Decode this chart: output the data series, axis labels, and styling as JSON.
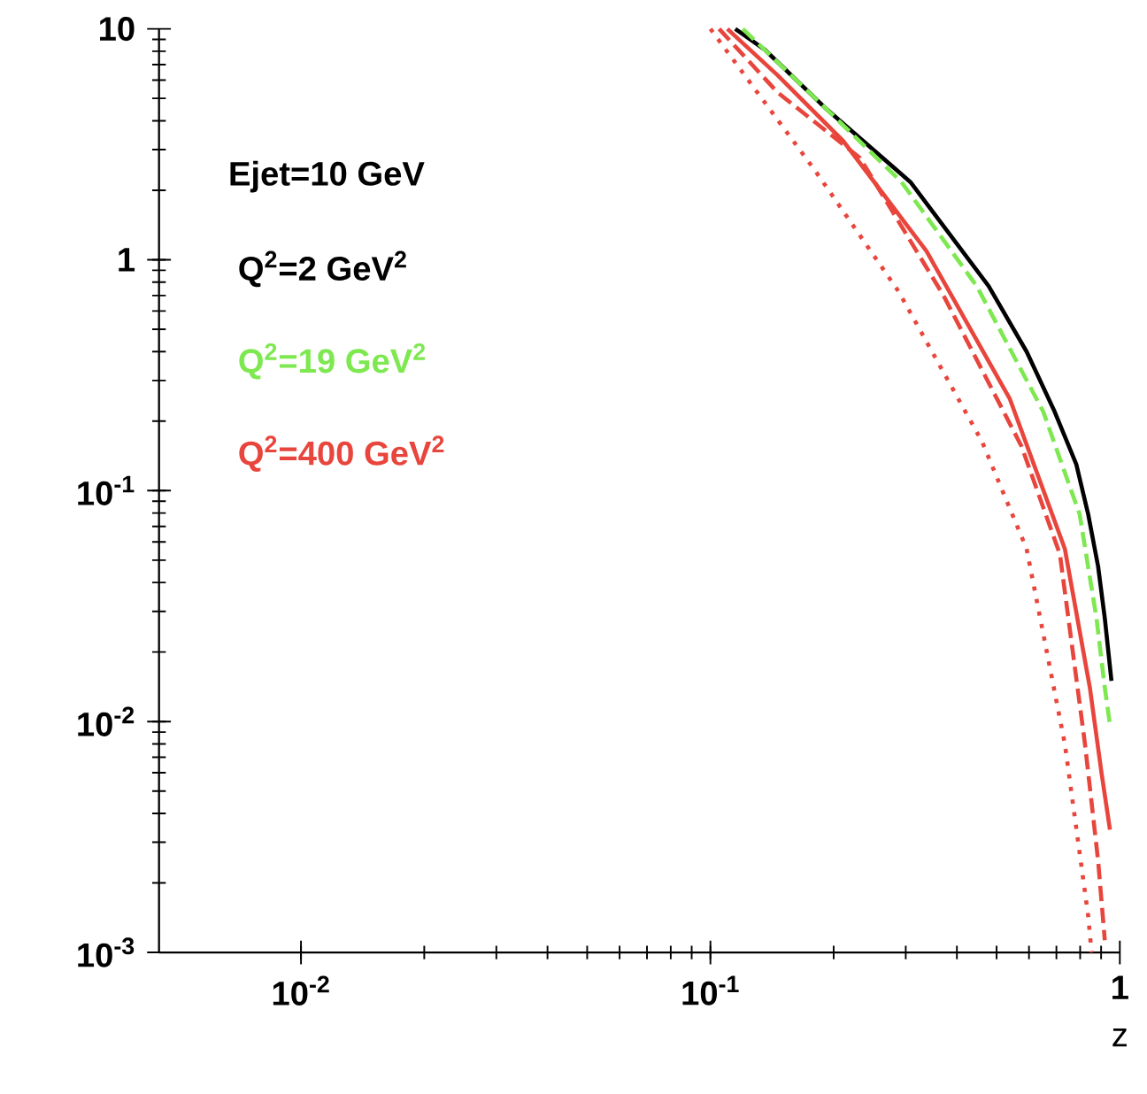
{
  "chart_data": {
    "type": "line",
    "log": "xy",
    "xlabel": "z",
    "xlim": [
      0.0045,
      1
    ],
    "ylim": [
      0.001,
      10
    ],
    "xticks": [
      {
        "value": 0.01,
        "label": "10$^{-2}$"
      },
      {
        "value": 0.1,
        "label": "10$^{-1}$"
      },
      1
    ],
    "yticks": [
      {
        "value": 0.001,
        "label": "10$^{-3}$"
      },
      {
        "value": 0.01,
        "label": "10$^{-2}$"
      },
      {
        "value": 0.1,
        "label": "10$^{-1}$"
      },
      1,
      10
    ],
    "legend": "top left",
    "annotations": [
      "Ejet=10 GeV"
    ],
    "series": [
      {
        "name": "Q$^{2}$=2 GeV$^{2}$",
        "color": "#000000",
        "line_style": "solid",
        "x": [
          0.115,
          0.136,
          0.193,
          0.308,
          0.478,
          0.592,
          0.693,
          0.783,
          0.837,
          0.885,
          0.919,
          0.954
        ],
        "values": [
          10,
          8.1,
          4.46,
          2.17,
          0.77,
          0.4,
          0.22,
          0.13,
          0.079,
          0.047,
          0.028,
          0.015
        ]
      },
      {
        "name": "Q$^{2}$=19 GeV$^{2}$",
        "color": "#7de84f",
        "line_style": "dashed",
        "x": [
          0.12,
          0.193,
          0.293,
          0.447,
          0.65,
          0.798,
          0.877,
          0.919,
          0.946
        ],
        "values": [
          10,
          4.46,
          2.17,
          0.77,
          0.22,
          0.079,
          0.028,
          0.014,
          0.0097
        ]
      },
      {
        "name": "Q$^{2}$=400 GeV$^{2}$",
        "color": "#e8453c",
        "line_style": "solid",
        "x": [
          0.11,
          0.146,
          0.211,
          0.337,
          0.539,
          0.734,
          0.845,
          0.902,
          0.946
        ],
        "values": [
          10,
          6.29,
          3.27,
          1.09,
          0.249,
          0.056,
          0.014,
          0.006,
          0.0034
        ]
      },
      {
        "color": "#e8453c",
        "line_style": "dashed",
        "x": [
          0.105,
          0.146,
          0.232,
          0.371,
          0.575,
          0.714,
          0.822,
          0.885,
          0.919
        ],
        "values": [
          10,
          5.3,
          2.76,
          0.7,
          0.156,
          0.053,
          0.008,
          0.0025,
          0.00113
        ]
      },
      {
        "color": "#e8453c",
        "line_style": "dotted",
        "x": [
          0.1,
          0.18,
          0.288,
          0.46,
          0.592,
          0.734,
          0.837,
          0.853
        ],
        "values": [
          10,
          2.44,
          0.73,
          0.164,
          0.056,
          0.008,
          0.00144,
          0.001
        ]
      }
    ]
  }
}
